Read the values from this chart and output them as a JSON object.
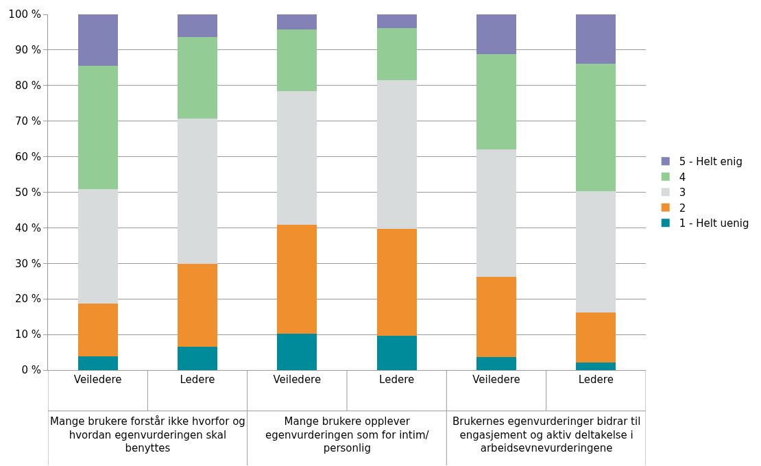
{
  "chart_data": {
    "type": "bar",
    "stacked": true,
    "categories": [
      "Veiledere",
      "Ledere",
      "Veiledere",
      "Ledere",
      "Veiledere",
      "Ledere"
    ],
    "series": [
      {
        "name": "1 - Helt uenig",
        "color": "#008b9a",
        "values": [
          3.8,
          6.5,
          10.3,
          9.6,
          3.6,
          2.1
        ]
      },
      {
        "name": "2",
        "color": "#ef8f2e",
        "values": [
          14.9,
          23.3,
          30.6,
          30.0,
          22.6,
          14.0
        ]
      },
      {
        "name": "3",
        "color": "#d7dbdb",
        "values": [
          32.2,
          40.9,
          37.5,
          41.9,
          35.8,
          34.2
        ]
      },
      {
        "name": "4",
        "color": "#93cd95",
        "values": [
          34.6,
          23.0,
          17.4,
          14.7,
          26.9,
          35.9
        ]
      },
      {
        "name": "5 - Helt enig",
        "color": "#8282b6",
        "values": [
          14.5,
          6.3,
          4.2,
          3.8,
          11.1,
          13.8
        ]
      }
    ],
    "annotations": [
      "Mange brukere forstår ikke hvorfor og\nhvordan egenvurderingen skal\nbenyttes",
      "Mange brukere opplever\negenvurderingen som for intim/\npersonlig",
      "Brukernes egenvurderinger bidrar til\nengasjement og aktiv deltakelse i\narbeidsevnevurderingene"
    ],
    "ylim": [
      0,
      100
    ],
    "yticks": [
      {
        "value": 0,
        "label": "0 %"
      },
      {
        "value": 10,
        "label": "10 %"
      },
      {
        "value": 20,
        "label": "20 %"
      },
      {
        "value": 30,
        "label": "30 %"
      },
      {
        "value": 40,
        "label": "40 %"
      },
      {
        "value": 50,
        "label": "50 %"
      },
      {
        "value": 60,
        "label": "60 %"
      },
      {
        "value": 70,
        "label": "70 %"
      },
      {
        "value": 80,
        "label": "80 %"
      },
      {
        "value": 90,
        "label": "90 %"
      },
      {
        "value": 100,
        "label": "100 %"
      }
    ],
    "grid": "y",
    "legend": "right"
  }
}
